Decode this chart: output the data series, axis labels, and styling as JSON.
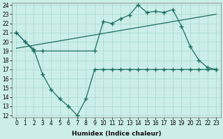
{
  "xlabel": "Humidex (Indice chaleur)",
  "ylabel": "",
  "background_color": "#cceee8",
  "grid_color": "#b0ddd6",
  "line_color": "#1a6e62",
  "ylim": [
    12,
    24
  ],
  "xlim": [
    -0.5,
    23.5
  ],
  "yticks": [
    12,
    13,
    14,
    15,
    16,
    17,
    18,
    19,
    20,
    21,
    22,
    23,
    24
  ],
  "xticks": [
    0,
    1,
    2,
    3,
    4,
    5,
    6,
    7,
    8,
    9,
    10,
    11,
    12,
    13,
    14,
    15,
    16,
    17,
    18,
    19,
    20,
    21,
    22,
    23
  ],
  "line1_x": [
    0,
    1,
    2,
    3,
    9,
    10,
    11,
    12,
    13,
    14,
    15,
    16,
    17,
    18,
    19,
    20,
    21,
    22,
    23
  ],
  "line1_y": [
    21.0,
    20.0,
    19.0,
    19.0,
    19.0,
    22.2,
    22.0,
    22.5,
    22.9,
    24.0,
    23.2,
    23.3,
    23.2,
    23.5,
    21.7,
    19.5,
    18.0,
    17.2,
    17.0
  ],
  "line2_x": [
    0,
    23
  ],
  "line2_y": [
    19.3,
    23.0
  ],
  "line3_x": [
    0,
    1,
    2,
    3,
    4,
    5,
    6,
    7,
    8,
    9,
    10,
    11,
    12,
    13,
    14,
    15,
    16,
    17,
    18,
    19,
    20,
    21,
    22,
    23
  ],
  "line3_y": [
    21.0,
    20.0,
    19.2,
    16.5,
    14.8,
    13.8,
    13.0,
    12.0,
    13.8,
    17.0,
    17.0,
    17.0,
    17.0,
    17.0,
    17.0,
    17.0,
    17.0,
    17.0,
    17.0,
    17.0,
    17.0,
    17.0,
    17.0,
    17.0
  ]
}
